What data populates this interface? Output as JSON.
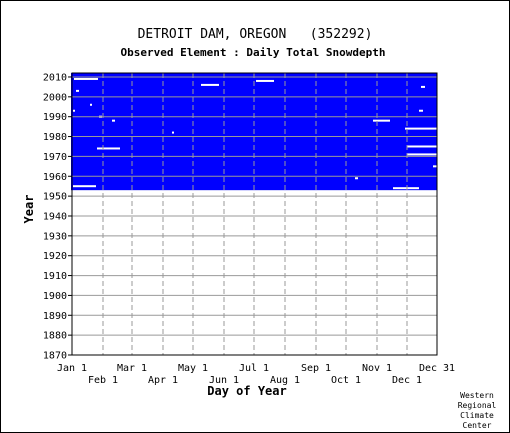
{
  "header": {
    "title": "DETROIT DAM, OREGON   (352292)",
    "subtitle": "Observed Element : Daily Total Snowdepth"
  },
  "credit": [
    "Western",
    "Regional",
    "Climate",
    "Center"
  ],
  "colors": {
    "data": "#0000ff",
    "gap": "#ffffff",
    "frame": "#000000",
    "grid": "#999999"
  },
  "chart_data": {
    "type": "heatmap",
    "title": "DETROIT DAM, OREGON   (352292)",
    "subtitle": "Observed Element : Daily Total Snowdepth",
    "xlabel": "Day of Year",
    "ylabel": "Year",
    "xlim": [
      1,
      366
    ],
    "ylim": [
      1870,
      2012
    ],
    "x_ticks_top": [
      {
        "label": "Jan 1",
        "day": 1
      },
      {
        "label": "Mar 1",
        "day": 61
      },
      {
        "label": "May 1",
        "day": 122
      },
      {
        "label": "Jul 1",
        "day": 183
      },
      {
        "label": "Sep 1",
        "day": 245
      },
      {
        "label": "Nov 1",
        "day": 306
      },
      {
        "label": "Dec 31",
        "day": 366
      }
    ],
    "x_ticks_bottom": [
      {
        "label": "Feb 1",
        "day": 32
      },
      {
        "label": "Apr 1",
        "day": 92
      },
      {
        "label": "Jun 1",
        "day": 153
      },
      {
        "label": "Aug 1",
        "day": 214
      },
      {
        "label": "Oct 1",
        "day": 275
      },
      {
        "label": "Dec 1",
        "day": 336
      }
    ],
    "y_ticks": [
      1870,
      1880,
      1890,
      1900,
      1910,
      1920,
      1930,
      1940,
      1950,
      1960,
      1970,
      1980,
      1990,
      2000,
      2010
    ],
    "grid": true,
    "coverage": {
      "year_start": 1954,
      "year_end": 2011,
      "day_start": 1,
      "day_end": 366
    },
    "gaps": [
      {
        "year": 2009,
        "day_start": 3,
        "day_end": 27
      },
      {
        "year": 2006,
        "day_start": 130,
        "day_end": 148
      },
      {
        "year": 2008,
        "day_start": 185,
        "day_end": 203
      },
      {
        "year": 1988,
        "day_start": 302,
        "day_end": 319
      },
      {
        "year": 1984,
        "day_start": 334,
        "day_end": 366
      },
      {
        "year": 1974,
        "day_start": 26,
        "day_end": 49
      },
      {
        "year": 1975,
        "day_start": 336,
        "day_end": 366
      },
      {
        "year": 1971,
        "day_start": 336,
        "day_end": 366
      },
      {
        "year": 1955,
        "day_start": 2,
        "day_end": 25
      },
      {
        "year": 1954,
        "day_start": 322,
        "day_end": 348
      },
      {
        "year": 2003,
        "day_start": 5,
        "day_end": 8
      },
      {
        "year": 1996,
        "day_start": 19,
        "day_end": 21
      },
      {
        "year": 1993,
        "day_start": 2,
        "day_end": 4
      },
      {
        "year": 1990,
        "day_start": 28,
        "day_end": 31
      },
      {
        "year": 1988,
        "day_start": 41,
        "day_end": 44
      },
      {
        "year": 1993,
        "day_start": 348,
        "day_end": 352
      },
      {
        "year": 2005,
        "day_start": 350,
        "day_end": 354
      },
      {
        "year": 1965,
        "day_start": 362,
        "day_end": 366
      },
      {
        "year": 1959,
        "day_start": 284,
        "day_end": 287
      },
      {
        "year": 1982,
        "day_start": 101,
        "day_end": 103
      }
    ]
  }
}
